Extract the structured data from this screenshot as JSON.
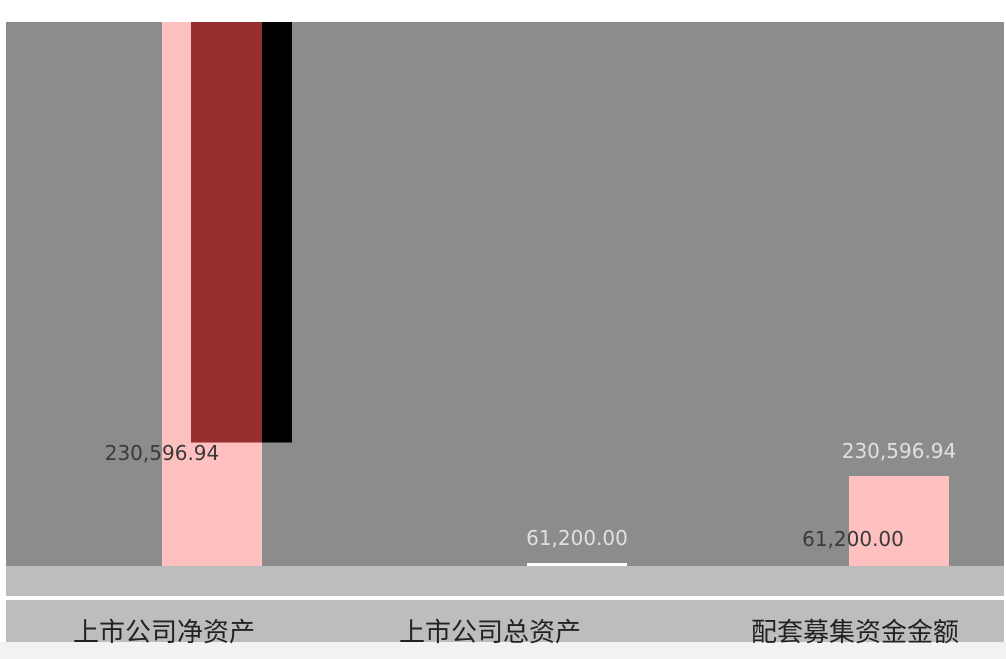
{
  "chart_data": {
    "type": "bar",
    "categories": [
      "上市公司净资产",
      "上市公司总资产",
      "配套募集资金金额"
    ],
    "series": [
      {
        "values": [
          230596.94,
          61200.0,
          230596.94
        ]
      },
      {
        "values": [
          230596.94,
          61200.0,
          61200.0
        ]
      }
    ],
    "data_labels": [
      [
        "230,596.94",
        "61,200.00",
        "230,596.94"
      ],
      [
        "",
        "",
        "61,200.00"
      ]
    ],
    "colors": {
      "plot_background": "#8c8c8c",
      "bar_pink": "#ffc0c0",
      "bar_darkred": "#963030",
      "bar_black": "#000000",
      "bar_white": "#ffffff",
      "band_grey": "#bdbdbd",
      "label_light": "#e0e0e0",
      "label_dark": "#3a3a3a"
    },
    "xlabel": "",
    "ylabel": "",
    "grid": false,
    "legend": "none"
  }
}
